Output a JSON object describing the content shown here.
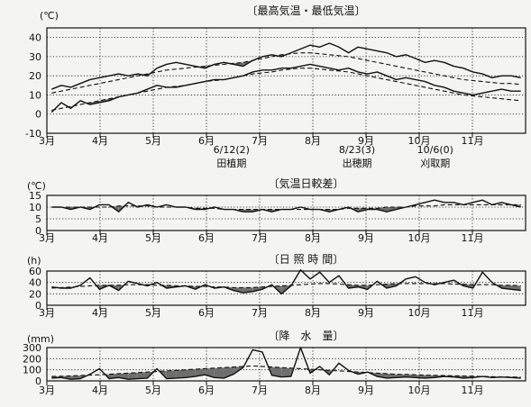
{
  "months": [
    "3月",
    "4月",
    "5月",
    "6月",
    "7月",
    "8月",
    "9月",
    "10月",
    "11月"
  ],
  "colors": {
    "ink": "#111111",
    "fill": "#6e6e6e",
    "bg": "#f4f4f2"
  },
  "chart_data": [
    {
      "type": "line",
      "title": "〔最高気温・最低気温〕",
      "ylabel": "(℃)",
      "ylim": [
        -10,
        45
      ],
      "yticks": [
        -10,
        0,
        10,
        20,
        30,
        40
      ],
      "grid": true,
      "x_start": "3月1日",
      "x_end": "11月30日",
      "x_points_per_month": 6,
      "series": [
        {
          "name": "",
          "style": "solid",
          "values": [
            13,
            15,
            14,
            16,
            18,
            19,
            20,
            21,
            20,
            21,
            20,
            24,
            26,
            27,
            26,
            25,
            24,
            26,
            27,
            26,
            25,
            28,
            30,
            31,
            30,
            32,
            34,
            36,
            35,
            37,
            35,
            32,
            35,
            34,
            33,
            32,
            30,
            31,
            29,
            27,
            28,
            27,
            25,
            24,
            22,
            21,
            19,
            20,
            20,
            19
          ]
        },
        {
          "name": "",
          "style": "dashed",
          "values": [
            11,
            12,
            13,
            14,
            15,
            16,
            17,
            18,
            19,
            20,
            21,
            22,
            23,
            23.5,
            24,
            24.5,
            25,
            25.5,
            26,
            26.5,
            27,
            28,
            29,
            30,
            31,
            31.5,
            32,
            32,
            31.5,
            31,
            30.5,
            30,
            29,
            28,
            27,
            26,
            25,
            24,
            23,
            22,
            21,
            20,
            19,
            18,
            17.5,
            17,
            16.5,
            16,
            16,
            15.5
          ]
        },
        {
          "name": "",
          "style": "solid",
          "values": [
            1,
            6,
            3,
            7,
            5,
            6,
            7,
            9,
            10,
            11,
            13,
            15,
            14,
            14,
            15,
            16,
            17,
            18,
            18,
            19,
            20,
            22,
            23,
            23,
            24,
            24,
            25,
            26,
            25,
            24,
            23,
            24,
            22,
            21,
            22,
            20,
            18,
            19,
            18,
            17,
            15,
            14,
            12,
            11,
            10,
            11,
            12,
            13,
            12,
            12
          ]
        },
        {
          "name": "",
          "style": "dashed",
          "values": [
            2,
            3,
            4,
            5,
            6,
            7,
            8,
            9,
            10,
            11,
            12,
            13,
            14,
            14.5,
            15,
            16,
            17,
            17.5,
            18,
            19,
            20,
            21,
            21.5,
            22,
            23,
            23.5,
            24,
            24,
            23.5,
            23,
            22.5,
            22,
            21,
            20,
            19,
            18,
            17,
            16,
            15,
            14,
            13,
            12,
            11,
            10,
            9.5,
            9,
            8.5,
            8,
            7.5,
            7
          ]
        }
      ],
      "annotations": [
        {
          "lines": [
            "6/12(2)",
            "田植期"
          ],
          "x_month": 3.37
        },
        {
          "lines": [
            "8/23(3)",
            "出穂期"
          ],
          "x_month": 5.73
        },
        {
          "lines": [
            "10/6(0)",
            "刈取期"
          ],
          "x_month": 7.2
        }
      ]
    },
    {
      "type": "line",
      "title": "〔気温日較差〕",
      "ylabel": "(℃)",
      "ylim": [
        0,
        15
      ],
      "yticks": [
        0,
        5,
        10,
        15
      ],
      "grid": true,
      "series": [
        {
          "name": "",
          "style": "solid",
          "values": [
            10,
            10,
            9,
            10,
            9,
            11,
            11,
            8,
            12,
            10,
            11,
            10,
            11,
            10,
            10,
            9,
            9,
            10,
            9,
            9,
            8,
            8,
            9,
            8,
            9,
            9,
            10,
            9,
            9,
            8,
            9,
            10,
            8,
            9,
            9,
            8,
            9,
            10,
            11,
            12,
            13,
            12,
            12,
            11,
            12,
            13,
            11,
            12,
            11,
            10
          ]
        },
        {
          "name": "",
          "style": "dashed",
          "values": [
            10,
            10,
            10,
            10,
            10,
            10,
            10,
            10.5,
            10.5,
            10.5,
            10.5,
            10,
            10,
            10,
            10,
            9.5,
            9.5,
            9.5,
            9,
            9,
            9,
            9,
            9,
            9,
            9,
            9,
            9,
            9,
            9,
            9,
            9,
            9.5,
            9.5,
            9.5,
            9.5,
            10,
            10,
            10,
            10.5,
            10.5,
            10.5,
            11,
            11,
            11,
            11,
            11,
            11,
            11,
            11,
            11
          ]
        }
      ]
    },
    {
      "type": "line",
      "title": "〔日 照 時 間〕",
      "ylabel": "(h)",
      "ylim": [
        0,
        60
      ],
      "yticks": [
        0,
        20,
        40,
        60
      ],
      "grid": true,
      "series": [
        {
          "name": "",
          "style": "solid",
          "values": [
            32,
            30,
            30,
            35,
            48,
            28,
            35,
            26,
            42,
            38,
            34,
            40,
            30,
            32,
            34,
            28,
            36,
            30,
            32,
            26,
            22,
            24,
            28,
            36,
            20,
            34,
            62,
            46,
            58,
            40,
            52,
            30,
            32,
            28,
            42,
            30,
            34,
            46,
            50,
            40,
            36,
            40,
            44,
            34,
            30,
            58,
            40,
            30,
            28,
            26
          ]
        },
        {
          "name": "",
          "style": "dashed",
          "values": [
            30,
            31,
            32,
            33,
            34,
            35,
            35,
            35,
            36,
            36,
            36,
            35,
            35,
            34,
            34,
            33,
            33,
            32,
            32,
            31,
            31,
            31,
            32,
            33,
            34,
            35,
            36,
            37,
            38,
            38,
            37,
            36,
            35,
            35,
            36,
            37,
            38,
            38,
            38,
            38,
            38,
            38,
            37,
            37,
            36,
            36,
            36,
            35,
            35,
            34
          ]
        }
      ]
    },
    {
      "type": "bar",
      "title": "〔降　水　量〕",
      "ylabel": "(mm)",
      "ylim": [
        0,
        300
      ],
      "yticks": [
        0,
        100,
        200,
        300
      ],
      "grid": true,
      "series": [
        {
          "name": "",
          "style": "solid",
          "values": [
            25,
            30,
            15,
            20,
            60,
            110,
            20,
            30,
            15,
            20,
            25,
            110,
            20,
            25,
            30,
            40,
            55,
            30,
            25,
            60,
            120,
            280,
            260,
            50,
            35,
            40,
            300,
            70,
            130,
            55,
            160,
            95,
            60,
            80,
            40,
            25,
            30,
            35,
            30,
            25,
            30,
            40,
            35,
            25,
            30,
            40,
            30,
            35,
            30,
            25
          ]
        },
        {
          "name": "",
          "style": "dashed",
          "values": [
            40,
            42,
            45,
            48,
            52,
            55,
            60,
            65,
            70,
            75,
            80,
            85,
            90,
            95,
            100,
            105,
            110,
            115,
            120,
            125,
            130,
            135,
            130,
            125,
            120,
            115,
            110,
            105,
            100,
            95,
            90,
            85,
            80,
            75,
            70,
            65,
            60,
            58,
            55,
            52,
            50,
            48,
            46,
            44,
            42,
            40,
            38,
            36,
            35,
            34
          ]
        }
      ]
    }
  ]
}
